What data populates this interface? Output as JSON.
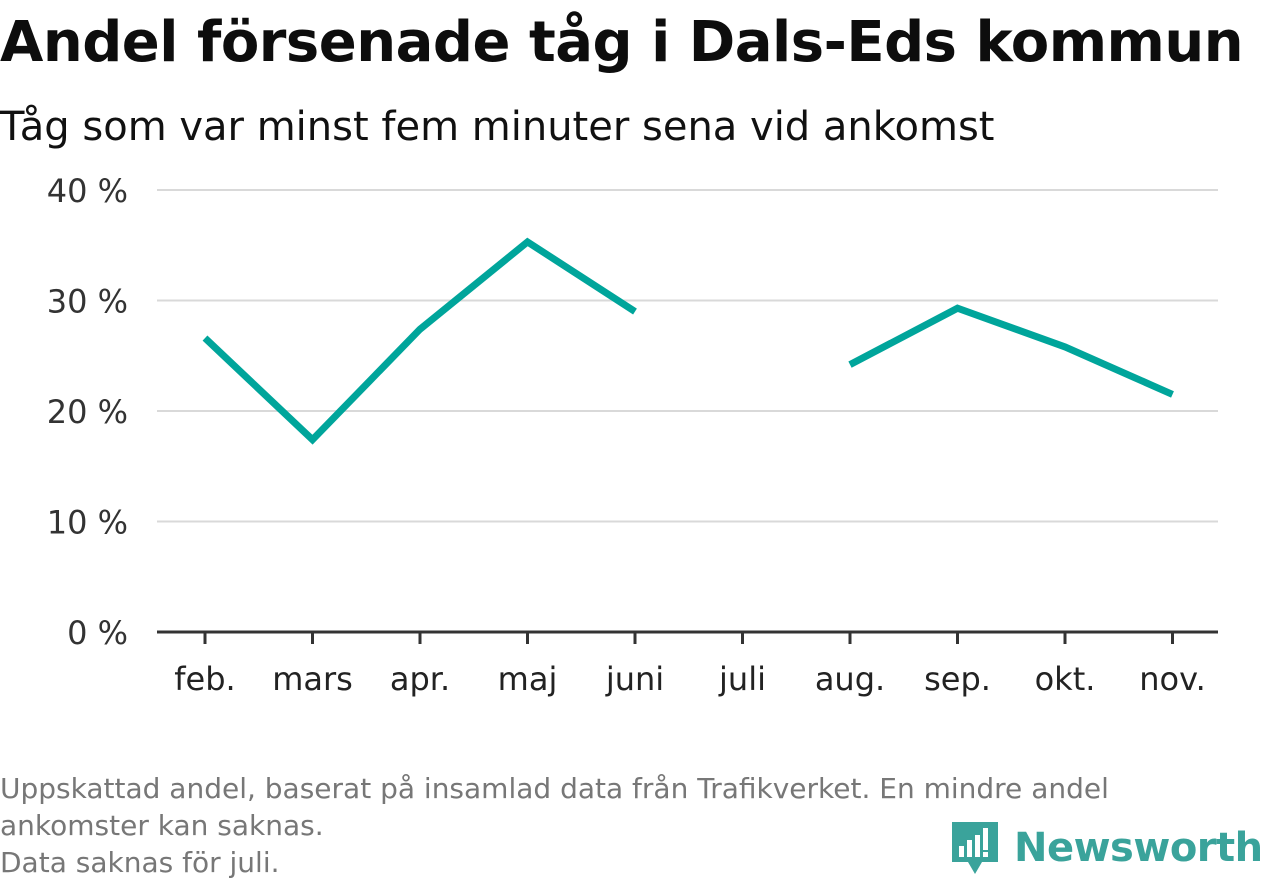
{
  "title": "Andel försenade tåg i Dals-Eds kommun",
  "subtitle": "Tåg som var minst fem minuter sena vid ankomst",
  "footer": {
    "line1": "Uppskattad andel, baserat på insamlad data från Trafikverket. En mindre andel",
    "line2": "ankomster kan saknas.",
    "line3": "Data saknas för juli."
  },
  "brand": {
    "name": "Newsworthy",
    "color": "#3aa39b",
    "icon": "newsworthy-logo-icon"
  },
  "colors": {
    "line": "#00a59b",
    "grid": "#d9d9d9",
    "axis": "#333333"
  },
  "chart_data": {
    "type": "line",
    "title": "Andel försenade tåg i Dals-Eds kommun",
    "subtitle": "Tåg som var minst fem minuter sena vid ankomst",
    "categories": [
      "feb.",
      "mars",
      "apr.",
      "maj",
      "juni",
      "juli",
      "aug.",
      "sep.",
      "okt.",
      "nov."
    ],
    "values": [
      26.6,
      17.4,
      27.4,
      35.3,
      29.0,
      null,
      24.2,
      29.3,
      25.8,
      21.5
    ],
    "ylim": [
      0,
      40
    ],
    "yticks": [
      0,
      10,
      20,
      30,
      40
    ],
    "ytick_labels": [
      "0 %",
      "10 %",
      "20 %",
      "30 %",
      "40 %"
    ],
    "grid": true,
    "xlabel": "",
    "ylabel": ""
  }
}
